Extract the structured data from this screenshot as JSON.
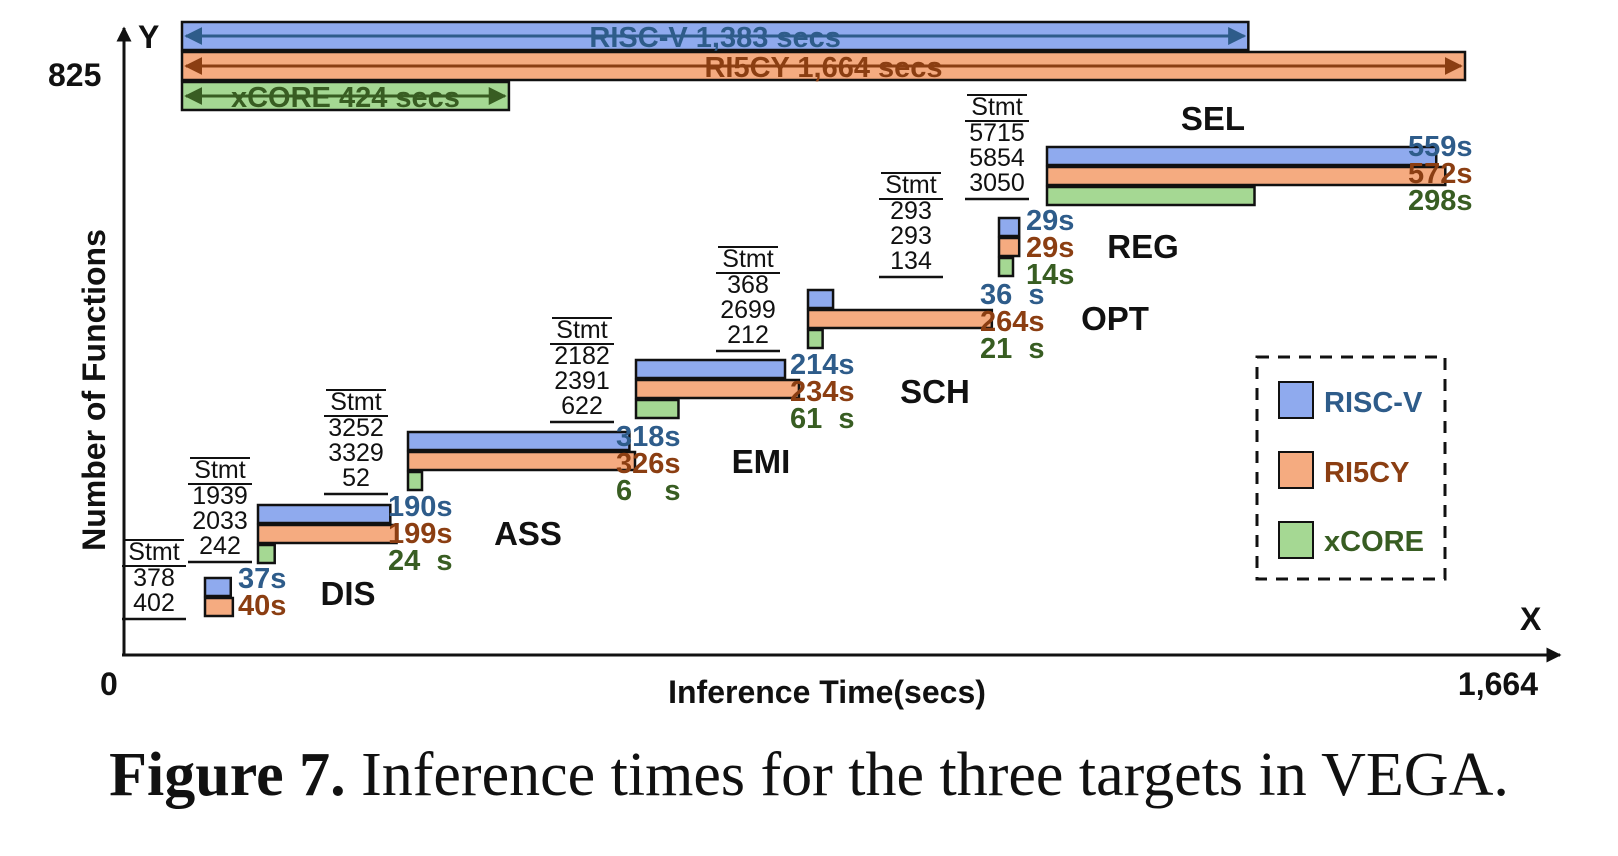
{
  "chart_data": {
    "type": "bar",
    "orientation": "horizontal",
    "xlabel": "Inference Time(secs)",
    "ylabel": "Number of Functions",
    "x_axis_letter": "X",
    "y_axis_letter": "Y",
    "xlim": [
      0,
      1664
    ],
    "ylim": [
      0,
      825
    ],
    "x_ticks": [
      "0",
      "1,664"
    ],
    "y_ticks": [
      "825"
    ],
    "grid": false,
    "legend_position": "lower-right",
    "colors": {
      "RISC-V": "#8faaee",
      "RI5CY": "#f5ab80",
      "xCORE": "#a5d893",
      "RISC-V_text": "#2e5c8a",
      "RI5CY_text": "#8b3e12",
      "xCORE_text": "#385d22"
    },
    "series": [
      {
        "name": "RISC-V"
      },
      {
        "name": "RI5CY"
      },
      {
        "name": "xCORE"
      }
    ],
    "totals": [
      {
        "series": "RISC-V",
        "label": "RISC-V  1,383 secs",
        "value": 1383
      },
      {
        "series": "RI5CY",
        "label": "RI5CY  1,664 secs",
        "value": 1664
      },
      {
        "series": "xCORE",
        "label": "xCORE  424 secs",
        "value": 424
      }
    ],
    "stmt_header": "Stmt",
    "modules": [
      {
        "name": "",
        "stmt": [
          "378",
          "402"
        ],
        "times": [
          37,
          40,
          null
        ],
        "time_labels": [
          "37s",
          "40s",
          ""
        ]
      },
      {
        "name": "DIS",
        "stmt": [
          "1939",
          "2033",
          "242"
        ],
        "times": [
          190,
          199,
          24
        ],
        "time_labels": [
          "190s",
          "199s",
          "24  s"
        ]
      },
      {
        "name": "ASS",
        "stmt": [
          "3252",
          "3329",
          "52"
        ],
        "times": [
          318,
          326,
          6
        ],
        "time_labels": [
          "318s",
          "326s",
          "6    s"
        ]
      },
      {
        "name": "EMI",
        "stmt": [
          "2182",
          "2391",
          "622"
        ],
        "times": [
          214,
          234,
          61
        ],
        "time_labels": [
          "214s",
          "234s",
          "61  s"
        ]
      },
      {
        "name": "SCH",
        "stmt": [
          "368",
          "2699",
          "212"
        ],
        "times": [
          36,
          264,
          21
        ],
        "time_labels": [
          "36  s",
          "264s",
          "21  s"
        ]
      },
      {
        "name": "OPT",
        "stmt": [
          "293",
          "293",
          "134"
        ],
        "times": [
          29,
          29,
          14
        ],
        "time_labels": [
          "29s",
          "29s",
          "14s"
        ]
      },
      {
        "name": "REG",
        "stmt": [
          "5715",
          "5854",
          "3050"
        ],
        "times": [
          559,
          572,
          298
        ],
        "time_labels": [
          "559s",
          "572s",
          "298s"
        ]
      },
      {
        "name": "SEL",
        "stmt": [],
        "times": [],
        "time_labels": []
      }
    ]
  },
  "caption": {
    "label": "Figure 7.",
    "text": " Inference times for the three targets in VEGA."
  }
}
